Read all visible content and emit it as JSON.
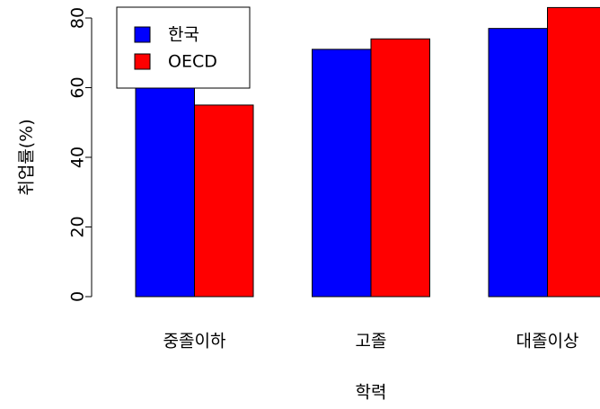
{
  "chart_data": {
    "type": "bar",
    "xlabel": "학력",
    "ylabel": "취업률(%)",
    "categories": [
      "중졸이하",
      "고졸",
      "대졸이상"
    ],
    "series": [
      {
        "name": "한국",
        "color": "#0000ff",
        "values": [
          66,
          71,
          77
        ]
      },
      {
        "name": "OECD",
        "color": "#ff0000",
        "values": [
          55,
          74,
          83
        ]
      }
    ],
    "ylim": [
      0,
      83
    ],
    "yticks": [
      0,
      20,
      40,
      60,
      80
    ],
    "legend": "topleft"
  }
}
